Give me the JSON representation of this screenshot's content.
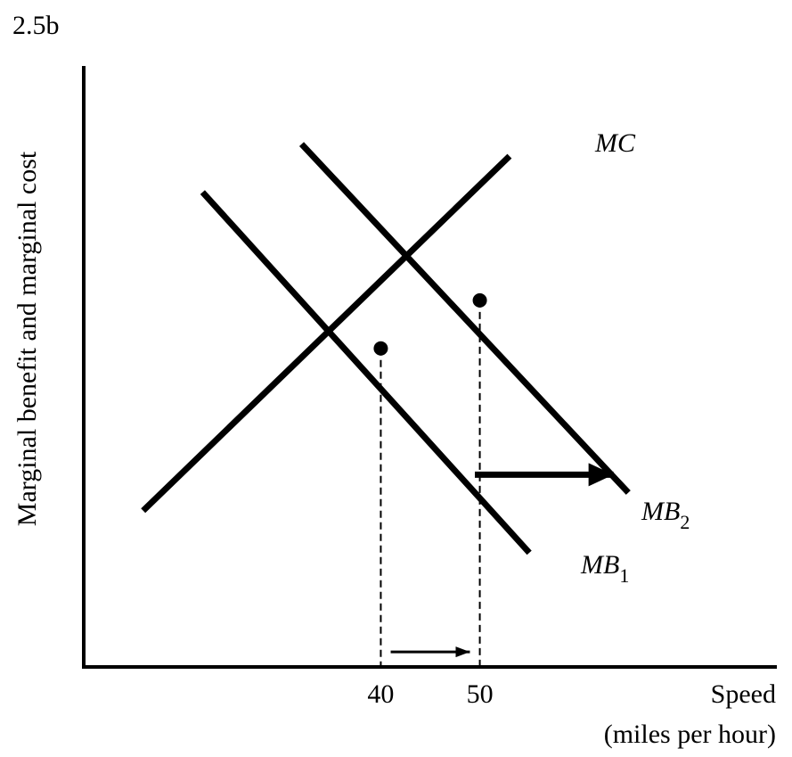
{
  "figure_label": "2.5b",
  "chart_data": {
    "type": "line",
    "title": "",
    "xlabel_line1": "Speed",
    "xlabel_line2": "(miles per hour)",
    "ylabel": "Marginal benefit and marginal cost",
    "xlim": [
      10,
      80
    ],
    "ylim": [
      0,
      100
    ],
    "x_ticks": [
      "40",
      "50"
    ],
    "equilibria": [
      {
        "x": 40,
        "y": 53
      },
      {
        "x": 50,
        "y": 61
      }
    ],
    "series": [
      {
        "label": "MC",
        "label_sub": "",
        "points": [
          [
            16,
            26
          ],
          [
            53,
            85
          ]
        ]
      },
      {
        "label": "MB",
        "label_sub": "1",
        "points": [
          [
            22,
            79
          ],
          [
            55,
            19
          ]
        ]
      },
      {
        "label": "MB",
        "label_sub": "2",
        "points": [
          [
            32,
            87
          ],
          [
            65,
            29
          ]
        ]
      }
    ],
    "shift_arrows": [
      {
        "from": [
          49.5,
          32
        ],
        "to": [
          63.5,
          32
        ],
        "note": "MB shifts right"
      },
      {
        "from": [
          41,
          2.5
        ],
        "to": [
          49,
          2.5
        ],
        "note": "speed rises 40 to 50"
      }
    ],
    "grid": false,
    "legend": "none"
  }
}
